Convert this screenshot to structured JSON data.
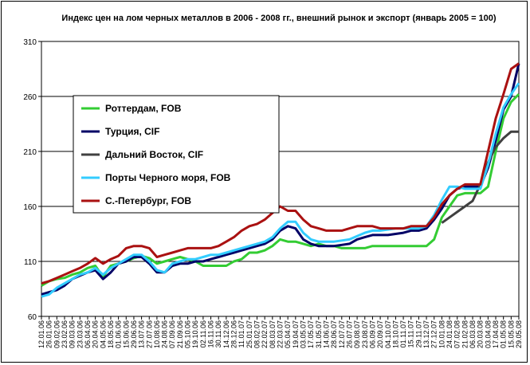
{
  "chart_data": {
    "type": "line",
    "title": "Индекс цен на лом черных металлов в 2006 - 2008 гг., внешний рынок и экспорт (январь 2005 = 100)",
    "ylim": [
      60,
      310
    ],
    "yticks": [
      60,
      110,
      160,
      210,
      260,
      310
    ],
    "grid": "horizontal",
    "legend_position": "inside-left",
    "x": [
      "12.01.06",
      "26.01.06",
      "09.02.06",
      "23.02.06",
      "09.03.06",
      "23.03.06",
      "06.04.06",
      "20.04.06",
      "04.05.06",
      "18.05.06",
      "01.06.06",
      "15.06.06",
      "29.06.06",
      "13.07.06",
      "27.07.06",
      "10.08.06",
      "24.08.06",
      "07.09.06",
      "21.09.06",
      "05.10.06",
      "19.10.06",
      "02.11.06",
      "16.11.06",
      "30.11.06",
      "14.12.06",
      "28.12.06",
      "11.01.07",
      "25.01.07",
      "08.02.07",
      "22.02.07",
      "08.03.07",
      "22.03.07",
      "05.04.07",
      "19.04.07",
      "03.05.07",
      "17.05.07",
      "31.05.07",
      "14.06.07",
      "28.06.07",
      "12.07.07",
      "26.07.07",
      "09.08.07",
      "23.08.07",
      "06.09.07",
      "20.09.07",
      "04.10.07",
      "18.10.07",
      "01.11.07",
      "15.11.07",
      "29.11.07",
      "13.12.07",
      "27.12.07",
      "10.01.08",
      "24.01.08",
      "07.02.08",
      "21.02.08",
      "06.03.08",
      "20.03.08",
      "03.04.08",
      "17.04.08",
      "01.05.08",
      "15.05.08",
      "29.05.08"
    ],
    "xticks": [
      "12.01.06",
      "26.01.06",
      "09.02.06",
      "23.02.06",
      "09.03.06",
      "23.03.06",
      "06.04.06",
      "20.04.06",
      "04.05.06",
      "18.05.06",
      "01.06.06",
      "15.06.06",
      "29.06.06",
      "13.07.06",
      "27.07.06",
      "10.08.06",
      "24.08.06",
      "07.09.06",
      "21.09.06",
      "05.10.06",
      "19.10.06",
      "02.11.06",
      "16.11.06",
      "30.11.06",
      "14.12.06",
      "28.12.06",
      "11.01.07",
      "25.01.07",
      "08.02.07",
      "22.02.07",
      "08.03.07",
      "22.03.07",
      "05.04.07",
      "19.04.07",
      "03.05.07",
      "17.05.07",
      "31.05.07",
      "14.06.07",
      "28.06.07",
      "12.07.07",
      "26.07.07",
      "09.08.07",
      "23.08.07",
      "06.09.07",
      "20.09.07",
      "04.10.07",
      "18.10.07",
      "01.11.07",
      "15.11.07",
      "29.11.07",
      "13.12.07",
      "27.12.07",
      "10.01.08",
      "24.01.08",
      "07.02.08",
      "21.02.08",
      "06.03.08",
      "20.03.08",
      "03.04.08",
      "17.04.08",
      "01.05.08",
      "15.05.08",
      "29.05.08"
    ],
    "series": [
      {
        "name": "Роттердам, FOB",
        "color": "#33cc33",
        "values": [
          88,
          92,
          94,
          95,
          98,
          100,
          104,
          106,
          96,
          106,
          108,
          110,
          113,
          115,
          113,
          108,
          110,
          112,
          114,
          112,
          110,
          106,
          106,
          106,
          106,
          110,
          112,
          118,
          118,
          120,
          124,
          130,
          128,
          128,
          126,
          124,
          126,
          124,
          124,
          122,
          122,
          122,
          122,
          124,
          124,
          124,
          124,
          124,
          124,
          124,
          124,
          130,
          150,
          160,
          170,
          172,
          172,
          172,
          178,
          210,
          240,
          255,
          262
        ]
      },
      {
        "name": "Турция, CIF",
        "color": "#000066",
        "values": [
          80,
          82,
          84,
          88,
          94,
          97,
          100,
          102,
          94,
          100,
          108,
          110,
          114,
          114,
          108,
          100,
          100,
          106,
          108,
          108,
          110,
          110,
          112,
          114,
          116,
          118,
          120,
          122,
          124,
          126,
          130,
          138,
          142,
          140,
          130,
          126,
          124,
          124,
          124,
          125,
          126,
          130,
          132,
          134,
          134,
          134,
          135,
          136,
          138,
          138,
          140,
          148,
          158,
          170,
          176,
          178,
          178,
          178,
          195,
          220,
          248,
          260,
          290
        ]
      },
      {
        "name": "Дальний Восток, CIF",
        "color": "#404040",
        "values": [
          null,
          null,
          null,
          null,
          null,
          null,
          null,
          null,
          null,
          null,
          null,
          null,
          null,
          null,
          null,
          null,
          null,
          null,
          null,
          null,
          null,
          null,
          null,
          null,
          null,
          null,
          null,
          null,
          null,
          null,
          null,
          null,
          null,
          null,
          null,
          null,
          null,
          null,
          null,
          null,
          null,
          null,
          null,
          null,
          null,
          null,
          null,
          null,
          null,
          null,
          null,
          null,
          145,
          150,
          155,
          160,
          165,
          180,
          200,
          214,
          222,
          228,
          228
        ]
      },
      {
        "name": "Порты Черного моря, FOB",
        "color": "#33ccff",
        "values": [
          78,
          80,
          86,
          90,
          94,
          98,
          100,
          104,
          98,
          104,
          108,
          112,
          116,
          116,
          110,
          102,
          100,
          108,
          110,
          112,
          112,
          114,
          116,
          116,
          118,
          120,
          122,
          124,
          126,
          128,
          132,
          140,
          146,
          146,
          136,
          130,
          128,
          128,
          128,
          129,
          130,
          133,
          136,
          138,
          138,
          139,
          140,
          140,
          140,
          140,
          142,
          152,
          166,
          178,
          178,
          176,
          176,
          176,
          198,
          226,
          250,
          262,
          272
        ]
      },
      {
        "name": "С.-Петербург, FOB",
        "color": "#aa1111",
        "values": [
          90,
          92,
          95,
          98,
          101,
          104,
          108,
          113,
          108,
          112,
          115,
          122,
          124,
          124,
          122,
          114,
          116,
          118,
          120,
          122,
          122,
          122,
          122,
          124,
          128,
          132,
          138,
          142,
          144,
          148,
          154,
          160,
          156,
          156,
          148,
          142,
          140,
          138,
          138,
          138,
          140,
          142,
          142,
          142,
          140,
          140,
          140,
          140,
          142,
          142,
          142,
          150,
          162,
          170,
          176,
          180,
          180,
          180,
          210,
          240,
          262,
          285,
          290
        ]
      }
    ]
  }
}
